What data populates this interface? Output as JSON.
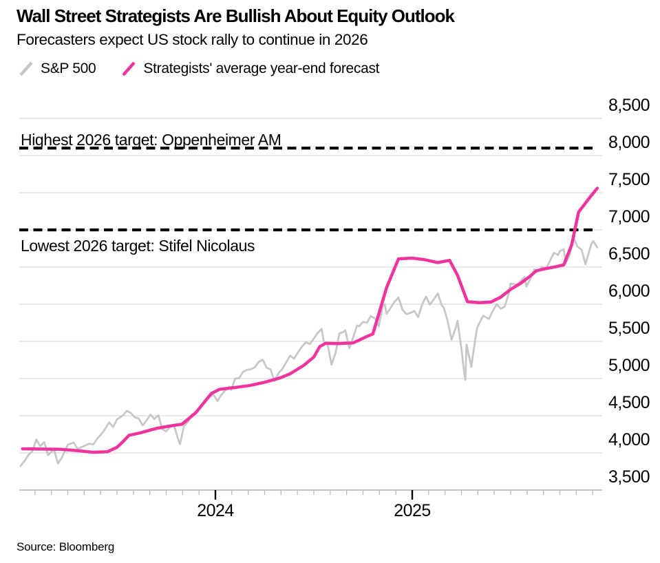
{
  "header": {
    "title": "Wall Street Strategists Are Bullish About Equity Outlook",
    "subtitle": "Forecasters expect US stock rally to continue in 2026"
  },
  "legend": [
    {
      "label": "S&P 500",
      "color": "#c7c7c7"
    },
    {
      "label": "Strategists' average year-end forecast",
      "color": "#f0349e"
    }
  ],
  "annotations": {
    "highest": {
      "label": "Highest 2026 target: Oppenheimer AM"
    },
    "lowest": {
      "label": "Lowest 2026 target: Stifel Nicolaus"
    }
  },
  "source": "Source: Bloomberg",
  "chart_data": {
    "type": "line",
    "title": "Wall Street Strategists Are Bullish About Equity Outlook",
    "subtitle": "Forecasters expect US stock rally to continue in 2026",
    "x_axis": {
      "start": 2023.0,
      "end": 2025.96,
      "year_ticks": [
        {
          "label": "2024",
          "x": 2024.0
        },
        {
          "label": "2025",
          "x": 2025.0
        }
      ],
      "minor_tick_interval_years": 0.08333
    },
    "y_axis": {
      "side": "right",
      "min": 3500,
      "max": 8500,
      "tick_step": 500,
      "ticks": [
        3500,
        4000,
        4500,
        5000,
        5500,
        6000,
        6500,
        7000,
        7500,
        8000,
        8500
      ]
    },
    "grid": true,
    "legend_position": "top-left",
    "target_lines": [
      {
        "name": "highest-2026-target",
        "value": 8100,
        "label": "Highest 2026 target: Oppenheimer AM",
        "style": "dashed",
        "color": "#000000"
      },
      {
        "name": "lowest-2026-target",
        "value": 7000,
        "label": "Lowest 2026 target: Stifel Nicolaus",
        "style": "dashed",
        "color": "#000000"
      }
    ],
    "series": [
      {
        "name": "S&P 500",
        "color": "#c7c7c7",
        "width": 2.8,
        "points": [
          [
            2023.01,
            3824
          ],
          [
            2023.03,
            3892
          ],
          [
            2023.05,
            3973
          ],
          [
            2023.07,
            4020
          ],
          [
            2023.09,
            4180
          ],
          [
            2023.11,
            4090
          ],
          [
            2023.13,
            4145
          ],
          [
            2023.15,
            3970
          ],
          [
            2023.18,
            4048
          ],
          [
            2023.2,
            3856
          ],
          [
            2023.22,
            3937
          ],
          [
            2023.25,
            4109
          ],
          [
            2023.28,
            4138
          ],
          [
            2023.3,
            4055
          ],
          [
            2023.33,
            4090
          ],
          [
            2023.36,
            4124
          ],
          [
            2023.38,
            4115
          ],
          [
            2023.4,
            4193
          ],
          [
            2023.43,
            4282
          ],
          [
            2023.46,
            4410
          ],
          [
            2023.48,
            4348
          ],
          [
            2023.5,
            4450
          ],
          [
            2023.53,
            4505
          ],
          [
            2023.55,
            4566
          ],
          [
            2023.57,
            4537
          ],
          [
            2023.59,
            4478
          ],
          [
            2023.61,
            4464
          ],
          [
            2023.63,
            4370
          ],
          [
            2023.65,
            4436
          ],
          [
            2023.67,
            4516
          ],
          [
            2023.69,
            4457
          ],
          [
            2023.71,
            4505
          ],
          [
            2023.73,
            4320
          ],
          [
            2023.75,
            4288
          ],
          [
            2023.77,
            4358
          ],
          [
            2023.79,
            4373
          ],
          [
            2023.81,
            4186
          ],
          [
            2023.82,
            4117
          ],
          [
            2023.84,
            4358
          ],
          [
            2023.86,
            4415
          ],
          [
            2023.88,
            4514
          ],
          [
            2023.9,
            4550
          ],
          [
            2023.92,
            4594
          ],
          [
            2023.95,
            4720
          ],
          [
            2023.97,
            4754
          ],
          [
            2023.99,
            4783
          ],
          [
            2024.01,
            4697
          ],
          [
            2024.03,
            4780
          ],
          [
            2024.05,
            4840
          ],
          [
            2024.07,
            4890
          ],
          [
            2024.08,
            4846
          ],
          [
            2024.1,
            4998
          ],
          [
            2024.12,
            5005
          ],
          [
            2024.14,
            5088
          ],
          [
            2024.16,
            5117
          ],
          [
            2024.18,
            5124
          ],
          [
            2024.2,
            5150
          ],
          [
            2024.22,
            5224
          ],
          [
            2024.24,
            5254
          ],
          [
            2024.26,
            5147
          ],
          [
            2024.28,
            5123
          ],
          [
            2024.3,
            4967
          ],
          [
            2024.32,
            5070
          ],
          [
            2024.34,
            5128
          ],
          [
            2024.36,
            5222
          ],
          [
            2024.38,
            5308
          ],
          [
            2024.4,
            5267
          ],
          [
            2024.42,
            5354
          ],
          [
            2024.44,
            5431
          ],
          [
            2024.46,
            5487
          ],
          [
            2024.48,
            5464
          ],
          [
            2024.5,
            5537
          ],
          [
            2024.52,
            5615
          ],
          [
            2024.54,
            5667
          ],
          [
            2024.55,
            5505
          ],
          [
            2024.57,
            5463
          ],
          [
            2024.59,
            5186
          ],
          [
            2024.61,
            5344
          ],
          [
            2024.63,
            5608
          ],
          [
            2024.65,
            5626
          ],
          [
            2024.66,
            5648
          ],
          [
            2024.68,
            5408
          ],
          [
            2024.7,
            5554
          ],
          [
            2024.72,
            5714
          ],
          [
            2024.73,
            5702
          ],
          [
            2024.75,
            5762
          ],
          [
            2024.77,
            5751
          ],
          [
            2024.79,
            5841
          ],
          [
            2024.81,
            5808
          ],
          [
            2024.83,
            5705
          ],
          [
            2024.85,
            5973
          ],
          [
            2024.86,
            6001
          ],
          [
            2024.87,
            5871
          ],
          [
            2024.89,
            5949
          ],
          [
            2024.91,
            6032
          ],
          [
            2024.93,
            6090
          ],
          [
            2024.95,
            5930
          ],
          [
            2024.97,
            5867
          ],
          [
            2024.99,
            5882
          ],
          [
            2025.01,
            5909
          ],
          [
            2025.03,
            5827
          ],
          [
            2025.05,
            5996
          ],
          [
            2025.07,
            6101
          ],
          [
            2025.09,
            5995
          ],
          [
            2025.11,
            6068
          ],
          [
            2025.13,
            6144
          ],
          [
            2025.15,
            5983
          ],
          [
            2025.16,
            5955
          ],
          [
            2025.18,
            5770
          ],
          [
            2025.2,
            5522
          ],
          [
            2025.22,
            5675
          ],
          [
            2025.23,
            5777
          ],
          [
            2025.25,
            5397
          ],
          [
            2025.264,
            5074
          ],
          [
            2025.27,
            4983
          ],
          [
            2025.276,
            5457
          ],
          [
            2025.29,
            5283
          ],
          [
            2025.3,
            5158
          ],
          [
            2025.32,
            5525
          ],
          [
            2025.33,
            5687
          ],
          [
            2025.36,
            5844
          ],
          [
            2025.39,
            5803
          ],
          [
            2025.41,
            5916
          ],
          [
            2025.43,
            6000
          ],
          [
            2025.45,
            5940
          ],
          [
            2025.47,
            5968
          ],
          [
            2025.49,
            6141
          ],
          [
            2025.5,
            6279
          ],
          [
            2025.53,
            6259
          ],
          [
            2025.55,
            6310
          ],
          [
            2025.57,
            6363
          ],
          [
            2025.58,
            6238
          ],
          [
            2025.6,
            6340
          ],
          [
            2025.62,
            6469
          ],
          [
            2025.64,
            6449
          ],
          [
            2025.66,
            6502
          ],
          [
            2025.68,
            6482
          ],
          [
            2025.7,
            6584
          ],
          [
            2025.72,
            6693
          ],
          [
            2025.74,
            6661
          ],
          [
            2025.75,
            6715
          ],
          [
            2025.77,
            6740
          ],
          [
            2025.78,
            6553
          ],
          [
            2025.8,
            6664
          ],
          [
            2025.82,
            6891
          ],
          [
            2025.84,
            6772
          ],
          [
            2025.86,
            6737
          ],
          [
            2025.88,
            6539
          ],
          [
            2025.91,
            6812
          ],
          [
            2025.92,
            6849
          ],
          [
            2025.94,
            6767
          ]
        ]
      },
      {
        "name": "Strategists' average year-end forecast",
        "color": "#f0349e",
        "width": 4.5,
        "points": [
          [
            2023.02,
            4055
          ],
          [
            2023.1,
            4052
          ],
          [
            2023.21,
            4048
          ],
          [
            2023.3,
            4030
          ],
          [
            2023.38,
            4008
          ],
          [
            2023.45,
            4015
          ],
          [
            2023.5,
            4075
          ],
          [
            2023.53,
            4150
          ],
          [
            2023.56,
            4235
          ],
          [
            2023.62,
            4270
          ],
          [
            2023.7,
            4330
          ],
          [
            2023.79,
            4370
          ],
          [
            2023.83,
            4385
          ],
          [
            2023.9,
            4540
          ],
          [
            2023.98,
            4800
          ],
          [
            2024.02,
            4855
          ],
          [
            2024.1,
            4880
          ],
          [
            2024.17,
            4905
          ],
          [
            2024.25,
            4950
          ],
          [
            2024.33,
            5010
          ],
          [
            2024.38,
            5065
          ],
          [
            2024.45,
            5180
          ],
          [
            2024.5,
            5290
          ],
          [
            2024.53,
            5430
          ],
          [
            2024.56,
            5475
          ],
          [
            2024.62,
            5470
          ],
          [
            2024.7,
            5480
          ],
          [
            2024.76,
            5555
          ],
          [
            2024.8,
            5600
          ],
          [
            2024.87,
            6225
          ],
          [
            2024.93,
            6610
          ],
          [
            2025.0,
            6620
          ],
          [
            2025.06,
            6600
          ],
          [
            2025.13,
            6560
          ],
          [
            2025.19,
            6590
          ],
          [
            2025.23,
            6390
          ],
          [
            2025.28,
            6035
          ],
          [
            2025.34,
            6020
          ],
          [
            2025.4,
            6030
          ],
          [
            2025.45,
            6095
          ],
          [
            2025.5,
            6200
          ],
          [
            2025.55,
            6280
          ],
          [
            2025.6,
            6380
          ],
          [
            2025.63,
            6450
          ],
          [
            2025.68,
            6480
          ],
          [
            2025.73,
            6505
          ],
          [
            2025.77,
            6530
          ],
          [
            2025.81,
            6800
          ],
          [
            2025.845,
            7240
          ],
          [
            2025.87,
            7325
          ],
          [
            2025.9,
            7430
          ],
          [
            2025.94,
            7560
          ]
        ]
      }
    ]
  }
}
